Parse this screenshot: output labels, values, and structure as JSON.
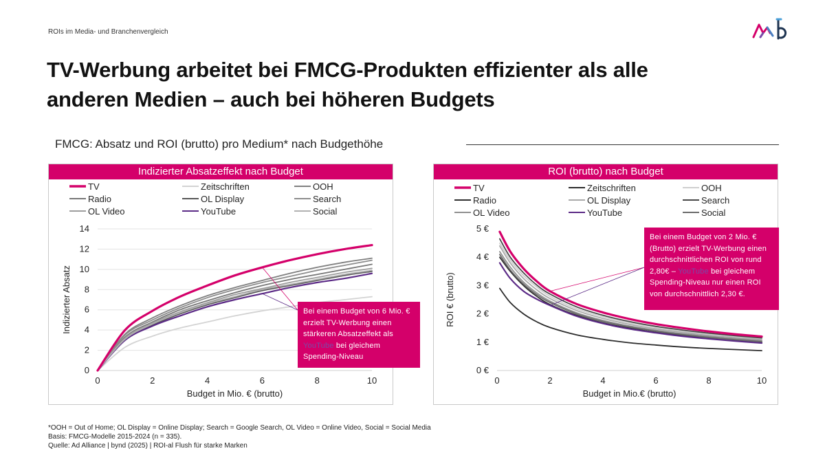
{
  "header": {
    "breadcrumb": "ROIs im Media- und Branchenvergleich",
    "title_line1": "TV-Werbung arbeitet bei FMCG-Produkten effizienter als alle",
    "title_line2": "anderen Medien – auch bei höheren Budgets",
    "subtitle": "FMCG: Absatz und ROI (brutto) pro Medium* nach Budgethöhe"
  },
  "colors": {
    "accent": "#d4006a",
    "youtube": "#5b2a86",
    "callout_highlight": "#7a4aa8"
  },
  "icons": {
    "logo": "ad-alliance-bynd-logo"
  },
  "chart_data": [
    {
      "type": "line",
      "title": "Indizierter Absatzeffekt nach Budget",
      "xlabel": "Budget in Mio. € (brutto)",
      "ylabel": "Indizierter Absatz",
      "xlim": [
        0,
        10
      ],
      "ylim": [
        0,
        14
      ],
      "x_ticks": [
        "0",
        "2",
        "4",
        "6",
        "8",
        "10"
      ],
      "y_ticks": [
        "0",
        "2",
        "4",
        "6",
        "8",
        "10",
        "12",
        "14"
      ],
      "grid": true,
      "legend_position": "top",
      "x": [
        0,
        1,
        2,
        3,
        4,
        5,
        6,
        7,
        8,
        9,
        10
      ],
      "series": [
        {
          "name": "TV",
          "color": "#d4006a",
          "values": [
            0,
            4.0,
            5.9,
            7.3,
            8.4,
            9.4,
            10.2,
            10.9,
            11.5,
            12.0,
            12.4
          ]
        },
        {
          "name": "Zeitschriften",
          "color": "#d3d3d3",
          "values": [
            0,
            2.3,
            3.4,
            4.2,
            4.8,
            5.4,
            5.9,
            6.3,
            6.7,
            7.0,
            7.3
          ]
        },
        {
          "name": "OOH",
          "color": "#7f7f7f",
          "values": [
            0,
            3.6,
            5.2,
            6.4,
            7.4,
            8.2,
            8.9,
            9.6,
            10.2,
            10.7,
            11.1
          ]
        },
        {
          "name": "Radio",
          "color": "#767676",
          "values": [
            0,
            3.3,
            4.8,
            6.0,
            6.9,
            7.7,
            8.4,
            9.0,
            9.5,
            10.0,
            10.5
          ]
        },
        {
          "name": "OL Display",
          "color": "#555555",
          "values": [
            0,
            3.1,
            4.5,
            5.6,
            6.5,
            7.2,
            7.9,
            8.4,
            8.9,
            9.4,
            9.8
          ]
        },
        {
          "name": "Search",
          "color": "#8c8c8c",
          "values": [
            0,
            3.5,
            5.0,
            6.2,
            7.2,
            8.0,
            8.7,
            9.3,
            9.9,
            10.4,
            10.9
          ]
        },
        {
          "name": "OL Video",
          "color": "#9c9c9c",
          "values": [
            0,
            3.2,
            4.7,
            5.8,
            6.7,
            7.5,
            8.1,
            8.7,
            9.2,
            9.7,
            10.1
          ]
        },
        {
          "name": "YouTube",
          "color": "#5b2a86",
          "values": [
            0,
            3.0,
            4.4,
            5.4,
            6.3,
            7.0,
            7.6,
            8.2,
            8.7,
            9.1,
            9.6
          ]
        },
        {
          "name": "Social",
          "color": "#b0b0b0",
          "values": [
            0,
            3.1,
            4.6,
            5.7,
            6.6,
            7.3,
            8.0,
            8.5,
            9.0,
            9.5,
            9.9
          ]
        }
      ],
      "annotation": {
        "text_before": "Bei einem Budget von 6 Mio. € erzielt TV-Werbung einen stärkeren Absatzeffekt als",
        "highlight": "YouTube",
        "text_after": "bei gleichem Spending-Niveau",
        "points_to_x": 6,
        "points_to_series": [
          "TV",
          "YouTube"
        ]
      }
    },
    {
      "type": "line",
      "title": "ROI (brutto) nach Budget",
      "xlabel": "Budget in Mio.€ (brutto)",
      "ylabel": "ROI € (brutto)",
      "xlim": [
        0,
        10
      ],
      "ylim": [
        0,
        5
      ],
      "x_ticks": [
        "0",
        "2",
        "4",
        "6",
        "8",
        "10"
      ],
      "y_ticks": [
        "0 €",
        "1 €",
        "2 €",
        "3 €",
        "4 €",
        "5 €"
      ],
      "grid": false,
      "legend_position": "top",
      "x": [
        0.1,
        0.5,
        1,
        1.5,
        2,
        3,
        4,
        5,
        6,
        7,
        8,
        9,
        10
      ],
      "series": [
        {
          "name": "TV",
          "color": "#d4006a",
          "values": [
            4.9,
            4.2,
            3.6,
            3.15,
            2.8,
            2.35,
            2.05,
            1.82,
            1.64,
            1.5,
            1.38,
            1.28,
            1.2
          ]
        },
        {
          "name": "Zeitschriften",
          "color": "#2b2b2b",
          "values": [
            2.9,
            2.4,
            2.0,
            1.72,
            1.52,
            1.26,
            1.1,
            0.98,
            0.9,
            0.83,
            0.78,
            0.74,
            0.7
          ]
        },
        {
          "name": "OOH",
          "color": "#cfcfcf",
          "values": [
            4.5,
            3.9,
            3.35,
            2.95,
            2.62,
            2.18,
            1.9,
            1.68,
            1.52,
            1.39,
            1.28,
            1.19,
            1.12
          ]
        },
        {
          "name": "Radio",
          "color": "#2f2f2f",
          "values": [
            4.0,
            3.5,
            3.0,
            2.62,
            2.33,
            1.95,
            1.68,
            1.5,
            1.35,
            1.24,
            1.14,
            1.06,
            1.0
          ]
        },
        {
          "name": "OL Display",
          "color": "#a9a9a9",
          "values": [
            4.4,
            3.8,
            3.25,
            2.85,
            2.54,
            2.12,
            1.84,
            1.63,
            1.47,
            1.35,
            1.24,
            1.16,
            1.09
          ]
        },
        {
          "name": "Search",
          "color": "#474747",
          "values": [
            4.65,
            4.0,
            3.45,
            3.02,
            2.7,
            2.25,
            1.95,
            1.73,
            1.56,
            1.43,
            1.32,
            1.23,
            1.15
          ]
        },
        {
          "name": "OL Video",
          "color": "#8f8f8f",
          "values": [
            4.2,
            3.65,
            3.12,
            2.74,
            2.45,
            2.04,
            1.77,
            1.57,
            1.42,
            1.3,
            1.2,
            1.12,
            1.05
          ]
        },
        {
          "name": "YouTube",
          "color": "#5b2a86",
          "values": [
            3.8,
            3.25,
            2.8,
            2.52,
            2.3,
            1.92,
            1.66,
            1.47,
            1.33,
            1.21,
            1.12,
            1.04,
            0.97
          ]
        },
        {
          "name": "Social",
          "color": "#6a6a6a",
          "values": [
            4.1,
            3.55,
            3.05,
            2.68,
            2.4,
            2.0,
            1.73,
            1.54,
            1.39,
            1.27,
            1.17,
            1.09,
            1.02
          ]
        }
      ],
      "annotation": {
        "text_before": "Bei einem Budget von 2 Mio. € (Brutto) erzielt TV-Werbung einen durchschnittlichen ROI von rund 2,80€ –",
        "highlight": "YouTube",
        "text_after": "bei gleichem Spending-Niveau nur einen ROI von durchschnittlich 2,30 €.",
        "points_to_x": 2,
        "points_to_series": [
          "TV",
          "YouTube"
        ]
      }
    }
  ],
  "footnotes": {
    "line1": "*OOH = Out of Home; OL Display = Online Display; Search = Google Search, OL Video = Online Video, Social = Social Media",
    "line2": "Basis: FMCG-Modelle 2015-2024 (n = 335).",
    "line3": "Quelle: Ad Alliance | bynd (2025) | ROI-al Flush für starke Marken"
  }
}
